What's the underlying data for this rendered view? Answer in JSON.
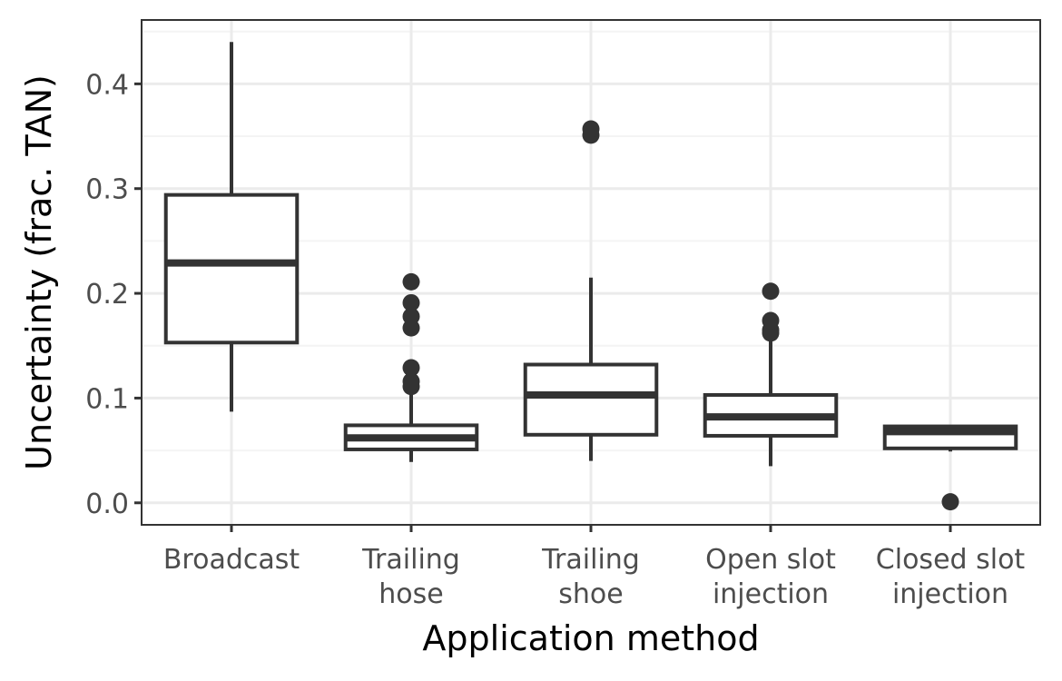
{
  "chart_data": {
    "type": "box",
    "title": "",
    "xlabel": "Application method",
    "ylabel": "Uncertainty (frac. TAN)",
    "ylim": [
      -0.021,
      0.461
    ],
    "yticks": [
      0.0,
      0.1,
      0.2,
      0.3,
      0.4
    ],
    "ytick_labels": [
      "0.0",
      "0.1",
      "0.2",
      "0.3",
      "0.4"
    ],
    "grid": true,
    "legend": "none",
    "categories": [
      [
        "Broadcast"
      ],
      [
        "Trailing",
        "hose"
      ],
      [
        "Trailing",
        "shoe"
      ],
      [
        "Open slot",
        "injection"
      ],
      [
        "Closed slot",
        "injection"
      ]
    ],
    "boxes": [
      {
        "whisker_low": 0.087,
        "q1": 0.153,
        "median": 0.229,
        "q3": 0.294,
        "whisker_high": 0.44,
        "outliers": []
      },
      {
        "whisker_low": 0.039,
        "q1": 0.051,
        "median": 0.062,
        "q3": 0.074,
        "whisker_high": 0.104,
        "outliers": [
          0.111,
          0.116,
          0.129,
          0.167,
          0.178,
          0.191,
          0.211
        ]
      },
      {
        "whisker_low": 0.04,
        "q1": 0.065,
        "median": 0.103,
        "q3": 0.132,
        "whisker_high": 0.215,
        "outliers": [
          0.351,
          0.357
        ]
      },
      {
        "whisker_low": 0.035,
        "q1": 0.064,
        "median": 0.082,
        "q3": 0.103,
        "whisker_high": 0.156,
        "outliers": [
          0.162,
          0.165,
          0.174,
          0.202
        ]
      },
      {
        "whisker_low": 0.049,
        "q1": 0.052,
        "median": 0.068,
        "q3": 0.073,
        "whisker_high": 0.074,
        "outliers": [
          0.001
        ]
      }
    ],
    "colors": {
      "box_stroke": "#333333",
      "box_fill": "#ffffff",
      "grid_major": "#ebebeb",
      "grid_minor": "#f4f4f4",
      "panel_border": "#333333"
    }
  }
}
